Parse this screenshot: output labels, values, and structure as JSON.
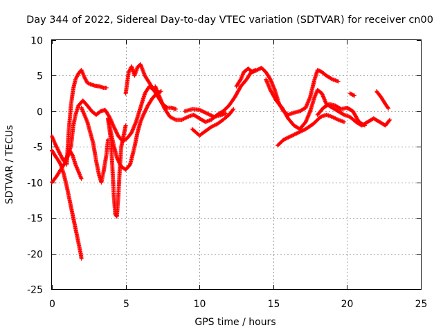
{
  "chart_data": {
    "type": "scatter",
    "title": "Day 344 of 2022, Sidereal Day-to-day VTEC variation (SDTVAR) for receiver cn00",
    "xlabel": "GPS time / hours",
    "ylabel": "SDTVAR / TECUs",
    "xlim": [
      0,
      25
    ],
    "ylim": [
      -25,
      10
    ],
    "xticks": [
      0,
      5,
      10,
      15,
      20,
      25
    ],
    "yticks": [
      -25,
      -20,
      -15,
      -10,
      -5,
      0,
      5,
      10
    ],
    "grid": true,
    "marker": "plus",
    "color": "#ff0000",
    "series": [
      {
        "name": "s1",
        "points": [
          [
            0,
            -10
          ],
          [
            0.3,
            -9.2
          ],
          [
            0.6,
            -8.2
          ],
          [
            0.9,
            -7.2
          ],
          [
            1.1,
            -6.2
          ],
          [
            1.3,
            -4.8
          ],
          [
            1.45,
            -2
          ],
          [
            1.6,
            -0.5
          ],
          [
            1.8,
            0.8
          ],
          [
            2.1,
            1.5
          ],
          [
            2.4,
            0.8
          ],
          [
            2.7,
            0
          ],
          [
            3.0,
            -0.5
          ],
          [
            3.3,
            0
          ],
          [
            3.6,
            0.2
          ],
          [
            3.9,
            -0.8
          ],
          [
            4.2,
            -2.2
          ],
          [
            4.5,
            -3.5
          ],
          [
            4.8,
            -4.2
          ],
          [
            5.1,
            -3.8
          ],
          [
            5.4,
            -3
          ],
          [
            5.7,
            -1.5
          ],
          [
            6.0,
            0.5
          ],
          [
            6.3,
            2.5
          ],
          [
            6.6,
            3.5
          ],
          [
            6.9,
            3
          ],
          [
            7.2,
            2
          ],
          [
            7.5,
            1
          ],
          [
            7.8,
            0.5
          ]
        ]
      },
      {
        "name": "s2",
        "points": [
          [
            0,
            -5.5
          ],
          [
            0.2,
            -6.2
          ],
          [
            0.4,
            -6.8
          ],
          [
            0.6,
            -7.5
          ],
          [
            0.8,
            -8.8
          ],
          [
            1.0,
            -10.5
          ],
          [
            1.2,
            -12.5
          ],
          [
            1.4,
            -14.5
          ],
          [
            1.6,
            -16.5
          ],
          [
            1.8,
            -18.5
          ],
          [
            1.95,
            -20
          ],
          [
            2.0,
            -20.7
          ]
        ]
      },
      {
        "name": "s3",
        "points": [
          [
            0,
            -3.5
          ],
          [
            0.2,
            -4.5
          ],
          [
            0.5,
            -5.8
          ],
          [
            0.8,
            -7
          ],
          [
            1.0,
            -6.5
          ],
          [
            1.2,
            -5.5
          ],
          [
            1.4,
            -6.2
          ],
          [
            1.6,
            -7.5
          ],
          [
            1.8,
            -8.5
          ],
          [
            2.0,
            -9.5
          ]
        ]
      },
      {
        "name": "s4",
        "points": [
          [
            1.0,
            -7.5
          ],
          [
            1.15,
            -2.5
          ],
          [
            1.3,
            1
          ],
          [
            1.45,
            3.2
          ],
          [
            1.6,
            4.5
          ],
          [
            1.8,
            5.3
          ],
          [
            2.0,
            5.8
          ],
          [
            2.2,
            4.8
          ],
          [
            2.4,
            4
          ],
          [
            2.6,
            3.8
          ],
          [
            2.9,
            3.6
          ],
          [
            3.2,
            3.5
          ],
          [
            3.5,
            3.3
          ],
          [
            3.7,
            3.3
          ]
        ]
      },
      {
        "name": "s5",
        "points": [
          [
            2.0,
            0.5
          ],
          [
            2.4,
            -1.5
          ],
          [
            2.8,
            -4.5
          ],
          [
            3.0,
            -7
          ],
          [
            3.2,
            -9
          ],
          [
            3.35,
            -10
          ],
          [
            3.5,
            -8.5
          ],
          [
            3.7,
            -6
          ],
          [
            3.8,
            -4
          ]
        ]
      },
      {
        "name": "s6",
        "points": [
          [
            3.8,
            -1
          ],
          [
            4.0,
            -4
          ],
          [
            4.1,
            -8
          ],
          [
            4.2,
            -12
          ],
          [
            4.3,
            -14.5
          ],
          [
            4.4,
            -14.8
          ],
          [
            4.5,
            -12
          ],
          [
            4.6,
            -8
          ],
          [
            4.7,
            -5
          ],
          [
            4.9,
            -3
          ],
          [
            5.0,
            -2
          ]
        ]
      },
      {
        "name": "s7",
        "points": [
          [
            3.8,
            -1
          ],
          [
            4.1,
            -4
          ],
          [
            4.4,
            -6.5
          ],
          [
            4.7,
            -7.8
          ],
          [
            5.0,
            -8.2
          ],
          [
            5.3,
            -7.5
          ],
          [
            5.6,
            -5
          ],
          [
            5.8,
            -3
          ],
          [
            6.0,
            -1.5
          ],
          [
            6.2,
            -0.5
          ],
          [
            6.5,
            0.8
          ],
          [
            6.8,
            1.8
          ],
          [
            7.1,
            2.5
          ],
          [
            7.4,
            2.8
          ]
        ]
      },
      {
        "name": "s8",
        "points": [
          [
            5.0,
            2.5
          ],
          [
            5.2,
            5.5
          ],
          [
            5.4,
            6.3
          ],
          [
            5.6,
            5
          ],
          [
            5.8,
            6.2
          ],
          [
            6.0,
            6.6
          ],
          [
            6.3,
            5
          ],
          [
            6.6,
            4
          ],
          [
            6.9,
            3
          ],
          [
            7.2,
            2
          ],
          [
            7.5,
            1
          ],
          [
            7.8,
            0.5
          ],
          [
            8.1,
            0.5
          ],
          [
            8.4,
            0.3
          ]
        ]
      },
      {
        "name": "s9",
        "points": [
          [
            7.0,
            3.5
          ],
          [
            7.3,
            2
          ],
          [
            7.6,
            0.5
          ],
          [
            8.0,
            -0.8
          ],
          [
            8.4,
            -1.2
          ],
          [
            8.8,
            -1.2
          ],
          [
            9.2,
            -0.8
          ],
          [
            9.6,
            -0.5
          ],
          [
            10.0,
            -1
          ],
          [
            10.4,
            -1.5
          ],
          [
            10.8,
            -1.2
          ],
          [
            11.2,
            -0.5
          ],
          [
            11.6,
            0
          ],
          [
            12.0,
            0.8
          ],
          [
            12.4,
            2
          ],
          [
            12.8,
            3.5
          ],
          [
            13.2,
            4.5
          ],
          [
            13.5,
            5.5
          ],
          [
            13.8,
            5.8
          ]
        ]
      },
      {
        "name": "s10",
        "points": [
          [
            9.5,
            -2.5
          ],
          [
            10,
            -3.4
          ],
          [
            10.4,
            -2.8
          ],
          [
            10.8,
            -2.2
          ],
          [
            11.2,
            -1.8
          ],
          [
            11.6,
            -1.2
          ],
          [
            12.0,
            -0.5
          ],
          [
            12.3,
            0.3
          ]
        ]
      },
      {
        "name": "s11",
        "points": [
          [
            9,
            0
          ],
          [
            9.5,
            0.3
          ],
          [
            10,
            0.2
          ],
          [
            10.5,
            -0.3
          ],
          [
            11,
            -0.8
          ],
          [
            11.5,
            -0.5
          ],
          [
            11.8,
            -0.3
          ]
        ]
      },
      {
        "name": "s12",
        "points": [
          [
            12.5,
            3.5
          ],
          [
            12.8,
            4.5
          ],
          [
            13.0,
            5.5
          ],
          [
            13.3,
            6
          ],
          [
            13.6,
            5.5
          ],
          [
            13.9,
            5.8
          ],
          [
            14.2,
            6.1
          ],
          [
            14.5,
            5.5
          ],
          [
            14.8,
            4.5
          ],
          [
            15.1,
            3
          ],
          [
            15.4,
            1
          ],
          [
            15.7,
            0
          ],
          [
            16.0,
            -0.5
          ],
          [
            16.4,
            -0.2
          ],
          [
            16.8,
            0
          ],
          [
            17.2,
            0.5
          ],
          [
            17.5,
            2
          ],
          [
            17.8,
            4.5
          ],
          [
            18.0,
            5.8
          ],
          [
            18.3,
            5.5
          ],
          [
            18.6,
            5
          ],
          [
            19.0,
            4.5
          ],
          [
            19.4,
            4.2
          ]
        ]
      },
      {
        "name": "s13",
        "points": [
          [
            14.5,
            4.5
          ],
          [
            14.8,
            3
          ],
          [
            15.2,
            1.5
          ],
          [
            15.6,
            0.5
          ],
          [
            16.0,
            -1
          ],
          [
            16.4,
            -2
          ],
          [
            16.8,
            -2.5
          ],
          [
            17.2,
            -1.5
          ],
          [
            17.5,
            0
          ],
          [
            17.8,
            2
          ],
          [
            18.0,
            3
          ],
          [
            18.3,
            2.5
          ],
          [
            18.6,
            1
          ],
          [
            19.0,
            0.5
          ],
          [
            19.4,
            0
          ],
          [
            19.8,
            -0.5
          ],
          [
            20.2,
            -0.8
          ],
          [
            20.6,
            -1.5
          ],
          [
            21.0,
            -2
          ],
          [
            21.4,
            -1.5
          ],
          [
            21.8,
            -1
          ],
          [
            22.2,
            -1.5
          ],
          [
            22.6,
            -2
          ],
          [
            22.9,
            -1.2
          ]
        ]
      },
      {
        "name": "s14",
        "points": [
          [
            15.3,
            -4.8
          ],
          [
            15.7,
            -4
          ],
          [
            16.2,
            -3.5
          ],
          [
            16.7,
            -3
          ],
          [
            17.2,
            -2.5
          ],
          [
            17.7,
            -1.8
          ],
          [
            18.2,
            -0.8
          ],
          [
            18.6,
            -0.5
          ],
          [
            19.0,
            -0.8
          ],
          [
            19.4,
            -1.2
          ],
          [
            19.8,
            -1.5
          ]
        ]
      },
      {
        "name": "s15",
        "points": [
          [
            18.0,
            -0.5
          ],
          [
            18.4,
            0.5
          ],
          [
            18.8,
            1
          ],
          [
            19.2,
            0.8
          ],
          [
            19.6,
            0.3
          ],
          [
            20.0,
            0.5
          ],
          [
            20.4,
            0
          ],
          [
            20.8,
            -1.5
          ],
          [
            21.2,
            -2
          ]
        ]
      },
      {
        "name": "s16",
        "points": [
          [
            20.2,
            2.5
          ],
          [
            20.5,
            2.2
          ]
        ]
      },
      {
        "name": "s17",
        "points": [
          [
            22.0,
            2.8
          ],
          [
            22.3,
            2
          ],
          [
            22.6,
            1
          ],
          [
            22.8,
            0.4
          ]
        ]
      }
    ]
  }
}
